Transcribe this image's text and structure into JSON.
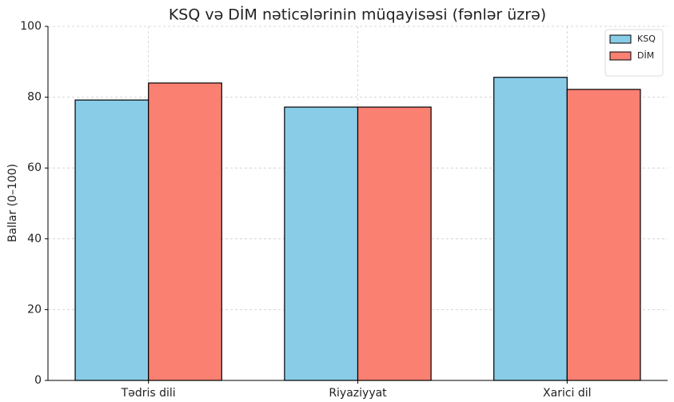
{
  "chart_data": {
    "type": "bar",
    "title": "KSQ və DİM nəticələrinin müqayisəsi (fənlər üzrə)",
    "y_label": "Ballar (0–100)",
    "categories": [
      "Tədris dili",
      "Riyaziyyat",
      "Xarici dil"
    ],
    "series": [
      {
        "name": "KSQ",
        "color": "#89cce8",
        "values": [
          79.2,
          77.2,
          85.6
        ]
      },
      {
        "name": "DİM",
        "color": "#fa8072",
        "values": [
          84.0,
          77.2,
          82.2
        ]
      }
    ],
    "ylim": [
      0,
      100
    ],
    "yticks": [
      0,
      20,
      40,
      60,
      80,
      100
    ],
    "grid": true,
    "legend": "upper right"
  }
}
